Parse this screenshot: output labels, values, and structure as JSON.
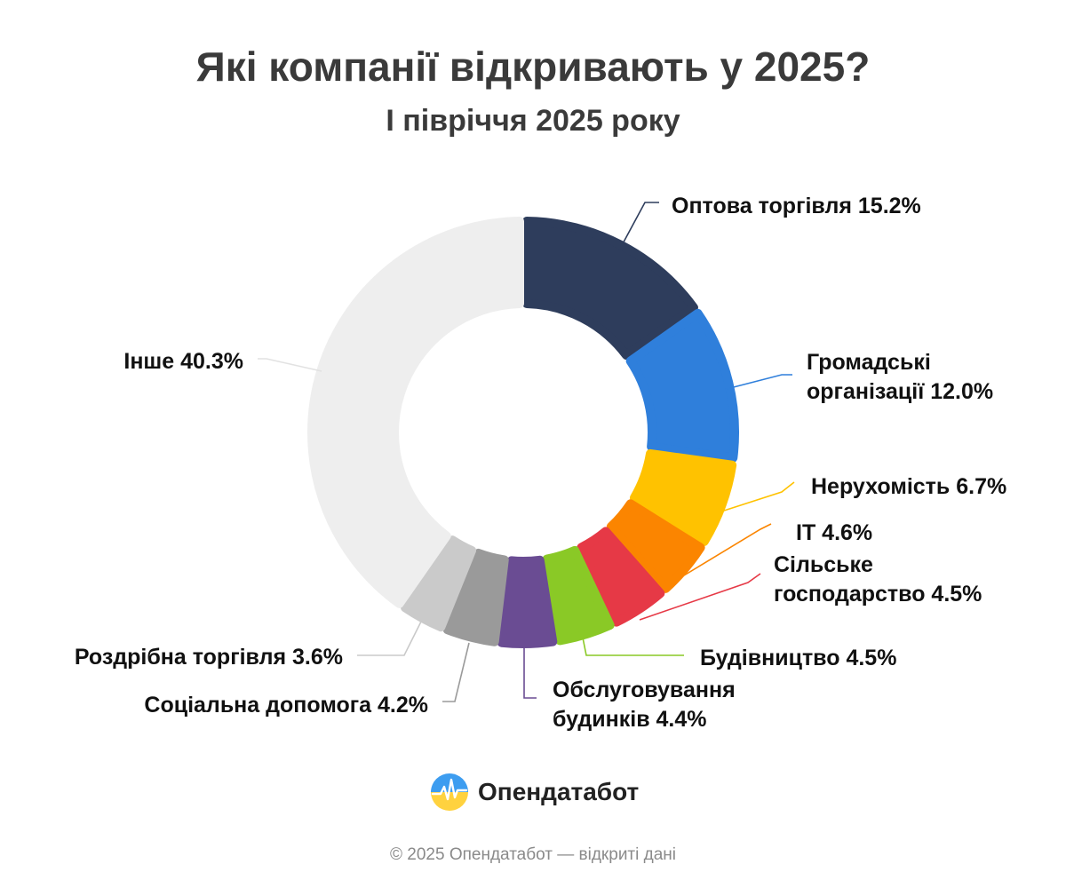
{
  "header": {
    "title": "Які компанії відкривають у 2025?",
    "subtitle": "І півріччя 2025 року"
  },
  "chart_data": {
    "type": "pie",
    "variant": "donut",
    "title": "Які компанії відкривають у 2025?",
    "subtitle": "І півріччя 2025 року",
    "unit": "%",
    "slices": [
      {
        "label_lines": [
          "Оптова торгівля 15.2%"
        ],
        "value": 15.2,
        "color": "#2e3d5c"
      },
      {
        "label_lines": [
          "Громадські",
          "організації 12.0%"
        ],
        "value": 12.0,
        "color": "#2f7fdb"
      },
      {
        "label_lines": [
          "Нерухомість 6.7%"
        ],
        "value": 6.7,
        "color": "#ffc200"
      },
      {
        "label_lines": [
          "IT 4.6%"
        ],
        "value": 4.6,
        "color": "#fb8500"
      },
      {
        "label_lines": [
          "Сільське",
          "господарство 4.5%"
        ],
        "value": 4.5,
        "color": "#e63946"
      },
      {
        "label_lines": [
          "Будівництво 4.5%"
        ],
        "value": 4.5,
        "color": "#8ac926"
      },
      {
        "label_lines": [
          "Обслуговування",
          "будинків 4.4%"
        ],
        "value": 4.4,
        "color": "#6a4c93"
      },
      {
        "label_lines": [
          "Соціальна допомога 4.2%"
        ],
        "value": 4.2,
        "color": "#9a9a9a"
      },
      {
        "label_lines": [
          "Роздрібна торгівля 3.6%"
        ],
        "value": 3.6,
        "color": "#cacaca"
      },
      {
        "label_lines": [
          "Інше 40.3%"
        ],
        "value": 40.3,
        "color": "#eeeeee"
      }
    ]
  },
  "brand": {
    "name": "Опендатабот",
    "logo_icon": "opendatabot-logo-icon"
  },
  "footer": {
    "text": "© 2025 Опендатабот — відкриті дані"
  }
}
